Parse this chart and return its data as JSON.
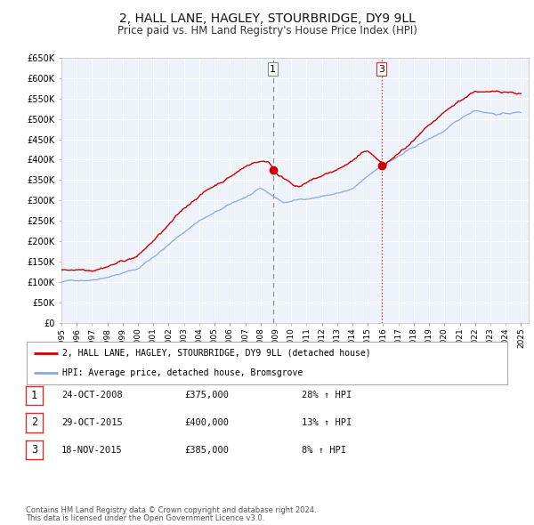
{
  "title": "2, HALL LANE, HAGLEY, STOURBRIDGE, DY9 9LL",
  "subtitle": "Price paid vs. HM Land Registry's House Price Index (HPI)",
  "ylim": [
    0,
    650000
  ],
  "xlim_start": 1995.0,
  "xlim_end": 2025.5,
  "ytick_labels": [
    "£0",
    "£50K",
    "£100K",
    "£150K",
    "£200K",
    "£250K",
    "£300K",
    "£350K",
    "£400K",
    "£450K",
    "£500K",
    "£550K",
    "£600K",
    "£650K"
  ],
  "ytick_values": [
    0,
    50000,
    100000,
    150000,
    200000,
    250000,
    300000,
    350000,
    400000,
    450000,
    500000,
    550000,
    600000,
    650000
  ],
  "xtick_years": [
    1995,
    1996,
    1997,
    1998,
    1999,
    2000,
    2001,
    2002,
    2003,
    2004,
    2005,
    2006,
    2007,
    2008,
    2009,
    2010,
    2011,
    2012,
    2013,
    2014,
    2015,
    2016,
    2017,
    2018,
    2019,
    2020,
    2021,
    2022,
    2023,
    2024,
    2025
  ],
  "property_color": "#cc0000",
  "hpi_color": "#88aadd",
  "background_color": "#eef2fa",
  "grid_color": "#ffffff",
  "transaction1_x": 2008.81,
  "transaction1_y": 375000,
  "transaction3_x": 2015.9,
  "transaction3_y": 385000,
  "vline1_color": "#888888",
  "vline2_color": "#cc3333",
  "legend_property": "2, HALL LANE, HAGLEY, STOURBRIDGE, DY9 9LL (detached house)",
  "legend_hpi": "HPI: Average price, detached house, Bromsgrove",
  "table_data": [
    {
      "num": "1",
      "date": "24-OCT-2008",
      "price": "£375,000",
      "pct": "28% ↑ HPI"
    },
    {
      "num": "2",
      "date": "29-OCT-2015",
      "price": "£400,000",
      "pct": "13% ↑ HPI"
    },
    {
      "num": "3",
      "date": "18-NOV-2015",
      "price": "£385,000",
      "pct": "8% ↑ HPI"
    }
  ],
  "footnote1": "Contains HM Land Registry data © Crown copyright and database right 2024.",
  "footnote2": "This data is licensed under the Open Government Licence v3.0."
}
